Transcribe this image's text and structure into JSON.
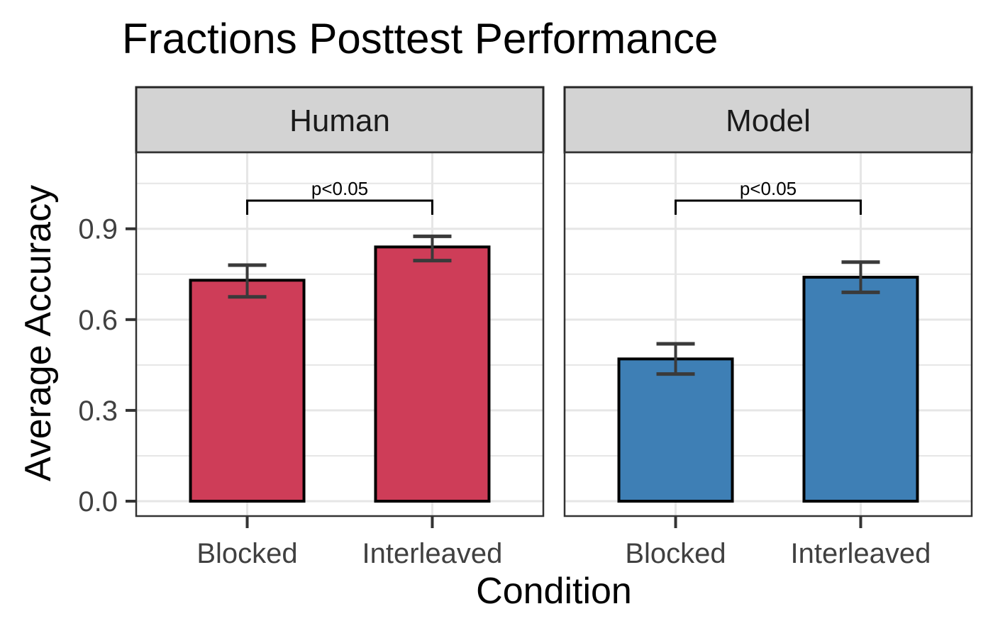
{
  "chart_data": {
    "type": "bar",
    "title": "Fractions Posttest Performance",
    "xlabel": "Condition",
    "ylabel": "Average Accuracy",
    "categories": [
      "Blocked",
      "Interleaved"
    ],
    "y_ticks": [
      0,
      0.3,
      0.6,
      0.9
    ],
    "ylim": [
      0,
      1.15
    ],
    "grid_step": 0.15,
    "grid": true,
    "legend_position": "none",
    "colors": {
      "human_bar": "#CE3D58",
      "model_bar": "#3E7FB5",
      "bar_outline": "#000000",
      "errorbar": "#3A3A3A",
      "gridline": "#E6E6E6",
      "strip_background": "#D3D3D3",
      "strip_border": "#262626",
      "panel_border": "#333333",
      "tick_mark": "#333333",
      "tick_text": "#404040",
      "facet_text": "#1A1A1A",
      "significance_text": "#000000"
    },
    "facets": [
      {
        "label": "Human",
        "color": "#CE3D58",
        "series": [
          {
            "category": "Blocked",
            "value": 0.73,
            "ci_low": 0.675,
            "ci_high": 0.78
          },
          {
            "category": "Interleaved",
            "value": 0.84,
            "ci_low": 0.795,
            "ci_high": 0.875
          }
        ],
        "significance_label": "p<0.05"
      },
      {
        "label": "Model",
        "color": "#3E7FB5",
        "series": [
          {
            "category": "Blocked",
            "value": 0.47,
            "ci_low": 0.42,
            "ci_high": 0.52
          },
          {
            "category": "Interleaved",
            "value": 0.74,
            "ci_low": 0.69,
            "ci_high": 0.79
          }
        ],
        "significance_label": "p<0.05"
      }
    ]
  }
}
